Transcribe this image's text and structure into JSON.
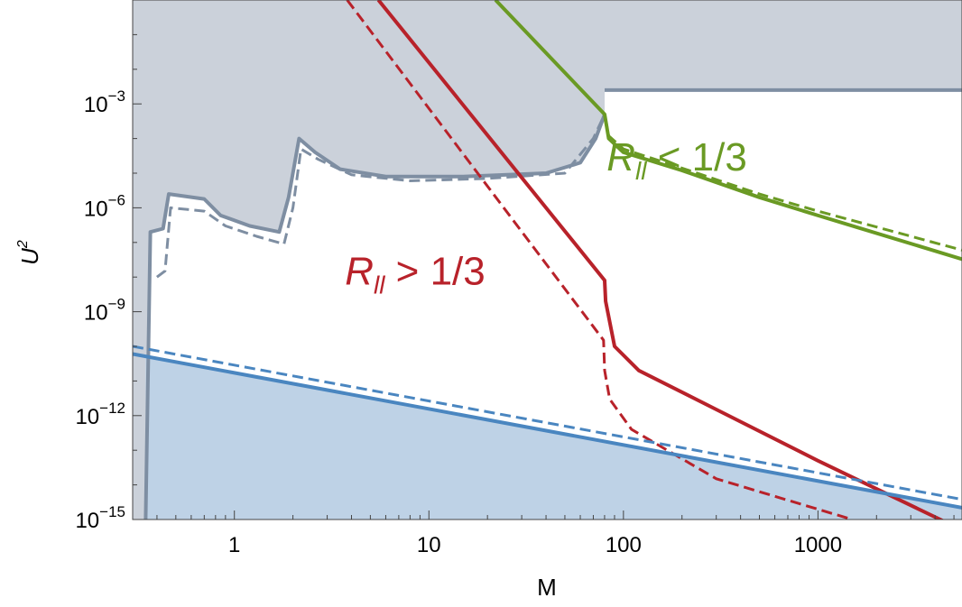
{
  "chart_data": {
    "type": "line",
    "title": "",
    "xlabel": "M",
    "ylabel": "U",
    "ylabel_sup": "2",
    "x_scale": "log",
    "y_scale": "log",
    "xlim": [
      0.3,
      5500
    ],
    "ylim": [
      1e-15,
      1
    ],
    "x_ticks": [
      {
        "value": 1,
        "label": "1"
      },
      {
        "value": 10,
        "label": "10"
      },
      {
        "value": 100,
        "label": "100"
      },
      {
        "value": 1000,
        "label": "1000"
      }
    ],
    "y_ticks": [
      {
        "exp": -3,
        "label": "10",
        "sup": "−3"
      },
      {
        "exp": -6,
        "label": "10",
        "sup": "−6"
      },
      {
        "exp": -9,
        "label": "10",
        "sup": "−9"
      },
      {
        "exp": -12,
        "label": "10",
        "sup": "−12"
      },
      {
        "exp": -15,
        "label": "10",
        "sup": "−15"
      }
    ],
    "annotations": [
      {
        "main": "R",
        "sub": "ll",
        "rest": " < 1/3",
        "color": "#6a9a24",
        "x": 82,
        "y": 1.2e-05
      },
      {
        "main": "R",
        "sub": "ll",
        "rest": " > 1/3",
        "color": "#b8222a",
        "x": 3.7,
        "y": 6e-09
      }
    ],
    "colors": {
      "excluded_region": "#cbd1da",
      "excluded_line": "#7e8ea2",
      "lower_fill": "#bed2e6",
      "lower_line": "#4a86c0",
      "red": "#b8222a",
      "green": "#6a9a24"
    },
    "series": [
      {
        "role": "excluded-bound-solid",
        "style": "solid",
        "color": "#7e8ea2",
        "points": [
          [
            0.35,
            1e-15
          ],
          [
            0.37,
            2e-07
          ],
          [
            0.43,
            2.5e-07
          ],
          [
            0.46,
            2.5e-06
          ],
          [
            0.7,
            1.8e-06
          ],
          [
            0.85,
            6e-07
          ],
          [
            1.2,
            3e-07
          ],
          [
            1.7,
            2e-07
          ],
          [
            1.9,
            2e-06
          ],
          [
            2.15,
            0.0001
          ],
          [
            2.6,
            4e-05
          ],
          [
            3.5,
            1.3e-05
          ],
          [
            6,
            8e-06
          ],
          [
            15,
            8e-06
          ],
          [
            40,
            1e-05
          ],
          [
            60,
            2e-05
          ],
          [
            72,
            0.0001
          ],
          [
            80,
            0.0005
          ]
        ]
      },
      {
        "role": "excluded-bound-dashed",
        "style": "dashed",
        "color": "#7e8ea2",
        "points": [
          [
            0.4,
            1e-08
          ],
          [
            0.44,
            1.5e-08
          ],
          [
            0.47,
            1e-06
          ],
          [
            0.7,
            8e-07
          ],
          [
            0.9,
            3e-07
          ],
          [
            1.3,
            1.5e-07
          ],
          [
            1.8,
            9e-08
          ],
          [
            2.0,
            1e-06
          ],
          [
            2.2,
            5e-05
          ],
          [
            2.7,
            2.5e-05
          ],
          [
            4,
            9e-06
          ],
          [
            8,
            6e-06
          ],
          [
            20,
            7e-06
          ],
          [
            50,
            1e-05
          ],
          [
            70,
            0.0001
          ],
          [
            80,
            0.0005
          ]
        ]
      },
      {
        "role": "excluded-plateau",
        "style": "solid",
        "color": "#7e8ea2",
        "points": [
          [
            80,
            0.0025
          ],
          [
            5500,
            0.0025
          ]
        ]
      },
      {
        "name": "",
        "role": "green-solid",
        "style": "solid",
        "color": "#6a9a24",
        "points": [
          [
            22,
            1
          ],
          [
            80,
            0.0005
          ],
          [
            84,
            0.0001
          ],
          [
            100,
            4e-05
          ],
          [
            200,
            1.2e-05
          ],
          [
            500,
            2e-06
          ],
          [
            1000,
            6e-07
          ],
          [
            5500,
            3.3e-08
          ]
        ]
      },
      {
        "name": "",
        "role": "green-dashed",
        "style": "dashed",
        "color": "#6a9a24",
        "points": [
          [
            22,
            1
          ],
          [
            80,
            0.0005
          ],
          [
            84,
            0.00012
          ],
          [
            100,
            5e-05
          ],
          [
            200,
            1.4e-05
          ],
          [
            500,
            2.5e-06
          ],
          [
            1000,
            8e-07
          ],
          [
            5500,
            6e-08
          ]
        ]
      },
      {
        "name": "",
        "role": "red-solid",
        "style": "solid",
        "color": "#b8222a",
        "points": [
          [
            5.5,
            1
          ],
          [
            80,
            8e-09
          ],
          [
            81,
            2e-09
          ],
          [
            90,
            1e-10
          ],
          [
            120,
            2e-11
          ],
          [
            300,
            1.5e-12
          ],
          [
            1000,
            5e-14
          ],
          [
            5500,
            5e-16
          ]
        ]
      },
      {
        "name": "",
        "role": "red-dashed",
        "style": "dashed",
        "color": "#b8222a",
        "points": [
          [
            3.8,
            1
          ],
          [
            79,
            1.5e-10
          ],
          [
            80,
            2e-11
          ],
          [
            85,
            3e-12
          ],
          [
            110,
            4e-13
          ],
          [
            300,
            1.5e-14
          ],
          [
            1500,
            1e-15
          ]
        ]
      },
      {
        "name": "",
        "role": "lower-solid",
        "style": "solid",
        "color": "#4a86c0",
        "points": [
          [
            0.3,
            6e-11
          ],
          [
            5500,
            2.2e-15
          ]
        ]
      },
      {
        "name": "",
        "role": "lower-dashed",
        "style": "dashed",
        "color": "#4a86c0",
        "points": [
          [
            0.3,
            1e-10
          ],
          [
            5500,
            3.8e-15
          ]
        ]
      }
    ]
  }
}
